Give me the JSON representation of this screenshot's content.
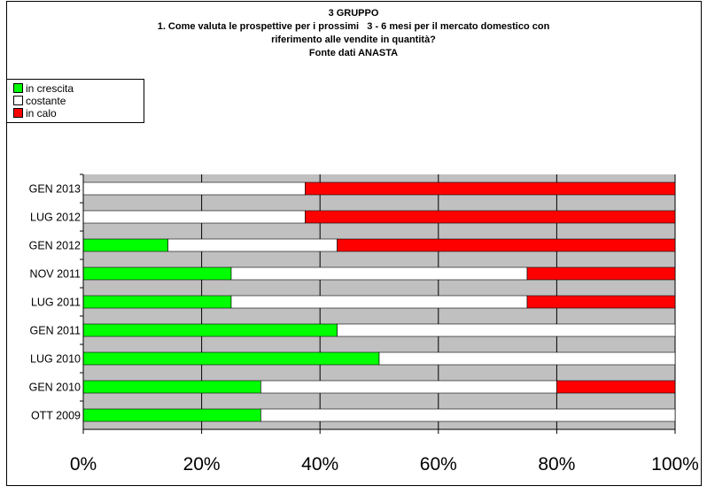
{
  "chart_data": {
    "type": "bar",
    "orientation": "horizontal",
    "stacked": true,
    "percent_stacked": true,
    "title_lines": [
      "3 GRUPPO",
      "1. Come valuta le prospettive per i prossimi   3 - 6 mesi per il mercato domestico con",
      "riferimento alle vendite in quantità?",
      "Fonte dati ANASTA"
    ],
    "categories": [
      "GEN 2013",
      "LUG 2012",
      "GEN 2012",
      "NOV 2011",
      "LUG 2011",
      "GEN 2011",
      "LUG 2010",
      "GEN 2010",
      "OTT 2009"
    ],
    "series": [
      {
        "name": "in crescita",
        "color": "#00ff00",
        "values": [
          0,
          0,
          14.3,
          25,
          25,
          42.9,
          50,
          30,
          30
        ]
      },
      {
        "name": "costante",
        "color": "#ffffff",
        "values": [
          37.5,
          37.5,
          28.6,
          50,
          50,
          57.1,
          50,
          50,
          70
        ]
      },
      {
        "name": "in calo",
        "color": "#ff0000",
        "values": [
          62.5,
          62.5,
          57.1,
          25,
          25,
          0,
          0,
          20,
          0
        ]
      }
    ],
    "x_ticks": [
      "0%",
      "20%",
      "40%",
      "60%",
      "80%",
      "100%"
    ],
    "xlim": [
      0,
      100
    ],
    "grid": true,
    "plot_background": "#c0c0c0",
    "legend_position": "top-left"
  }
}
